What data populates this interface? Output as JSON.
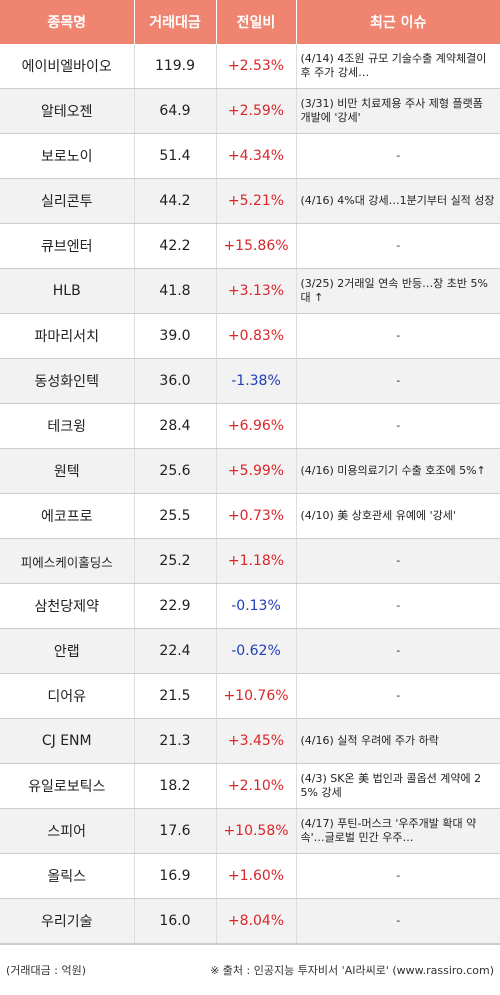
{
  "headers": [
    "종목명",
    "거래대금",
    "전일비",
    "최근 이슈"
  ],
  "rows": [
    {
      "name": "에이비엘바이오",
      "amount": "119.9",
      "change": "+2.53%",
      "dir": "up",
      "issue": "(4/14) 4조원 규모 기술수출 계약체결이후 주가 강세…"
    },
    {
      "name": "알테오젠",
      "amount": "64.9",
      "change": "+2.59%",
      "dir": "up",
      "issue": "(3/31) 비만 치료제용 주사 제형 플랫폼 개발에 '강세'"
    },
    {
      "name": "보로노이",
      "amount": "51.4",
      "change": "+4.34%",
      "dir": "up",
      "issue": "-"
    },
    {
      "name": "실리콘투",
      "amount": "44.2",
      "change": "+5.21%",
      "dir": "up",
      "issue": "(4/16) 4%대 강세…1분기부터 실적 성장"
    },
    {
      "name": "큐브엔터",
      "amount": "42.2",
      "change": "+15.86%",
      "dir": "up",
      "issue": "-"
    },
    {
      "name": "HLB",
      "amount": "41.8",
      "change": "+3.13%",
      "dir": "up",
      "issue": "(3/25) 2거래일 연속 반등…장 초반 5%대 ↑"
    },
    {
      "name": "파마리서치",
      "amount": "39.0",
      "change": "+0.83%",
      "dir": "up",
      "issue": "-"
    },
    {
      "name": "동성화인텍",
      "amount": "36.0",
      "change": "-1.38%",
      "dir": "down",
      "issue": "-"
    },
    {
      "name": "테크윙",
      "amount": "28.4",
      "change": "+6.96%",
      "dir": "up",
      "issue": "-"
    },
    {
      "name": "원텍",
      "amount": "25.6",
      "change": "+5.99%",
      "dir": "up",
      "issue": "(4/16) 미용의료기기 수출 호조에 5%↑"
    },
    {
      "name": "에코프로",
      "amount": "25.5",
      "change": "+0.73%",
      "dir": "up",
      "issue": "(4/10) 美 상호관세 유예에 '강세'"
    },
    {
      "name": "피에스케이홀딩스",
      "amount": "25.2",
      "change": "+1.18%",
      "dir": "up",
      "issue": "-",
      "small": true
    },
    {
      "name": "삼천당제약",
      "amount": "22.9",
      "change": "-0.13%",
      "dir": "down",
      "issue": "-"
    },
    {
      "name": "안랩",
      "amount": "22.4",
      "change": "-0.62%",
      "dir": "down",
      "issue": "-"
    },
    {
      "name": "디어유",
      "amount": "21.5",
      "change": "+10.76%",
      "dir": "up",
      "issue": "-"
    },
    {
      "name": "CJ ENM",
      "amount": "21.3",
      "change": "+3.45%",
      "dir": "up",
      "issue": "(4/16) 실적 우려에 주가 하락"
    },
    {
      "name": "유일로보틱스",
      "amount": "18.2",
      "change": "+2.10%",
      "dir": "up",
      "issue": "(4/3) SK온 美 법인과 콜옵션 계약에 25% 강세"
    },
    {
      "name": "스피어",
      "amount": "17.6",
      "change": "+10.58%",
      "dir": "up",
      "issue": "(4/17) 푸틴-머스크 '우주개발 확대 약속'…글로벌 민간 우주…"
    },
    {
      "name": "올릭스",
      "amount": "16.9",
      "change": "+1.60%",
      "dir": "up",
      "issue": "-"
    },
    {
      "name": "우리기술",
      "amount": "16.0",
      "change": "+8.04%",
      "dir": "up",
      "issue": "-"
    }
  ],
  "footer": {
    "unit": "(거래대금 : 억원)",
    "source": "※ 출처 : 인공지능 투자비서 'AI라씨로' (www.rassiro.com)"
  },
  "colors": {
    "header_bg": "#ef8470",
    "up": "#d9262a",
    "down": "#1f3fb8"
  }
}
